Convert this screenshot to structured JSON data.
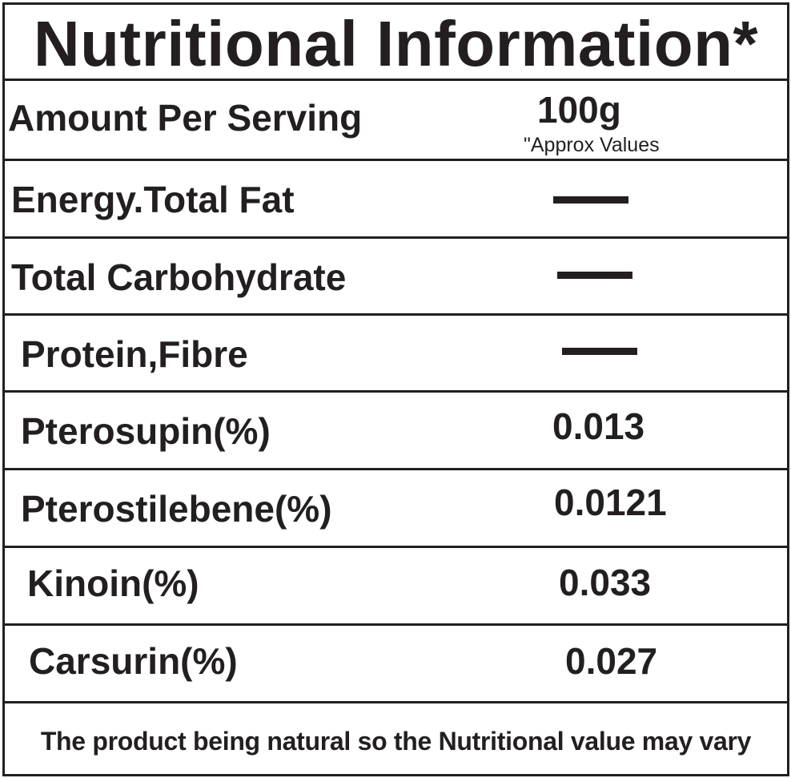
{
  "title": "Nutritional Information*",
  "serving": {
    "label": "Amount Per Serving",
    "value": "100g",
    "note": "\"Approx Values"
  },
  "rows": [
    {
      "label": "Energy.Total Fat",
      "value": "",
      "dash": true
    },
    {
      "label": "Total Carbohydrate",
      "value": "",
      "dash": true
    },
    {
      "label": "Protein,Fibre",
      "value": "",
      "dash": true
    },
    {
      "label": "Pterosupin(%)",
      "value": "0.013"
    },
    {
      "label": "Pterostilebene(%)",
      "value": "0.0121"
    },
    {
      "label": "Kinoin(%)",
      "value": "0.033"
    },
    {
      "label": "Carsurin(%)",
      "value": "0.027"
    }
  ],
  "footer": "The product being natural so the Nutritional value may vary",
  "colors": {
    "ink": "#231f20",
    "background": "#ffffff"
  }
}
